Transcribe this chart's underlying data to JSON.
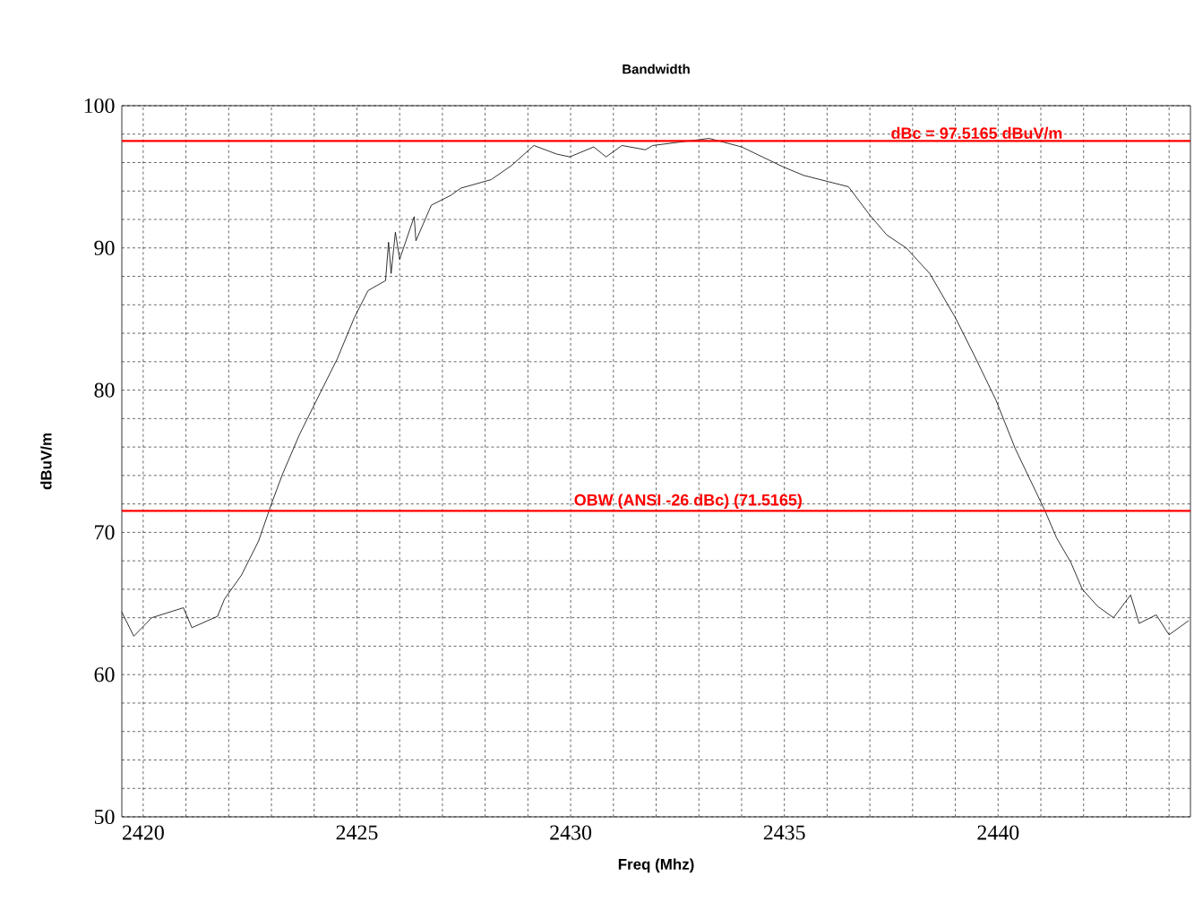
{
  "chart_data": {
    "type": "line",
    "title": "Bandwidth",
    "xlabel": "Freq (Mhz)",
    "ylabel": "dBuV/m",
    "x": [
      2419.5,
      2419.78,
      2420.2,
      2420.94,
      2421.14,
      2421.74,
      2421.9,
      2422.3,
      2422.7,
      2423.0,
      2423.26,
      2423.66,
      2424.14,
      2424.54,
      2424.94,
      2425.26,
      2425.67,
      2425.74,
      2425.8,
      2425.9,
      2426.0,
      2426.34,
      2426.38,
      2426.74,
      2427.2,
      2427.43,
      2428.14,
      2428.62,
      2429.14,
      2429.67,
      2429.98,
      2430.54,
      2430.83,
      2431.2,
      2431.75,
      2431.92,
      2433.24,
      2434.0,
      2434.97,
      2435.45,
      2436.5,
      2437.0,
      2437.4,
      2437.85,
      2438.4,
      2439.0,
      2439.45,
      2439.95,
      2440.4,
      2441.1,
      2441.37,
      2441.7,
      2441.97,
      2442.33,
      2442.7,
      2443.1,
      2443.3,
      2443.7,
      2444.0,
      2444.46
    ],
    "series": [
      {
        "color": "#000000",
        "values": [
          64.4,
          62.7,
          64.0,
          64.7,
          63.3,
          64.1,
          65.3,
          67.0,
          69.4,
          72.0,
          74.1,
          76.9,
          79.8,
          82.2,
          85.1,
          87.0,
          87.7,
          90.4,
          88.2,
          91.1,
          89.2,
          92.2,
          90.5,
          93.0,
          93.7,
          94.2,
          94.8,
          95.8,
          97.2,
          96.6,
          96.4,
          97.1,
          96.4,
          97.2,
          96.9,
          97.2,
          97.7,
          97.1,
          95.7,
          95.1,
          94.3,
          92.3,
          90.9,
          90.0,
          88.2,
          85.1,
          82.4,
          79.3,
          75.9,
          71.5,
          69.6,
          67.9,
          66.0,
          64.8,
          64.0,
          65.6,
          63.6,
          64.2,
          62.8,
          63.8
        ]
      }
    ],
    "xlim": [
      2419.5,
      2444.5
    ],
    "ylim": [
      50,
      100
    ],
    "xticks": [
      2420,
      {
        "value": 2421,
        "label": null
      },
      {
        "value": 2422,
        "label": null
      },
      {
        "value": 2423,
        "label": null
      },
      {
        "value": 2424,
        "label": null
      },
      2425,
      {
        "value": 2426,
        "label": null
      },
      {
        "value": 2427,
        "label": null
      },
      {
        "value": 2428,
        "label": null
      },
      {
        "value": 2429,
        "label": null
      },
      2430,
      {
        "value": 2431,
        "label": null
      },
      {
        "value": 2432,
        "label": null
      },
      {
        "value": 2433,
        "label": null
      },
      {
        "value": 2434,
        "label": null
      },
      2435,
      {
        "value": 2436,
        "label": null
      },
      {
        "value": 2437,
        "label": null
      },
      {
        "value": 2438,
        "label": null
      },
      {
        "value": 2439,
        "label": null
      },
      2440,
      {
        "value": 2441,
        "label": null
      },
      {
        "value": 2442,
        "label": null
      },
      {
        "value": 2443,
        "label": null
      },
      {
        "value": 2444,
        "label": null
      }
    ],
    "yticks": [
      50,
      {
        "value": 52,
        "label": null
      },
      {
        "value": 54,
        "label": null
      },
      {
        "value": 56,
        "label": null
      },
      {
        "value": 58,
        "label": null
      },
      60,
      {
        "value": 62,
        "label": null
      },
      {
        "value": 64,
        "label": null
      },
      {
        "value": 66,
        "label": null
      },
      {
        "value": 68,
        "label": null
      },
      70,
      {
        "value": 72,
        "label": null
      },
      {
        "value": 74,
        "label": null
      },
      {
        "value": 76,
        "label": null
      },
      {
        "value": 78,
        "label": null
      },
      80,
      {
        "value": 82,
        "label": null
      },
      {
        "value": 84,
        "label": null
      },
      {
        "value": 86,
        "label": null
      },
      {
        "value": 88,
        "label": null
      },
      90,
      {
        "value": 92,
        "label": null
      },
      {
        "value": 94,
        "label": null
      },
      {
        "value": 96,
        "label": null
      },
      {
        "value": 98,
        "label": null
      },
      100
    ],
    "grid": true,
    "ref_lines": [
      {
        "axis": "y",
        "value": 97.5165,
        "label": "dBc = 97.5165 dBuV/m",
        "color": "#ff0000"
      },
      {
        "axis": "y",
        "value": 71.5165,
        "label": "OBW (ANSI -26 dBc) (71.5165)",
        "color": "#ff0000"
      }
    ]
  }
}
